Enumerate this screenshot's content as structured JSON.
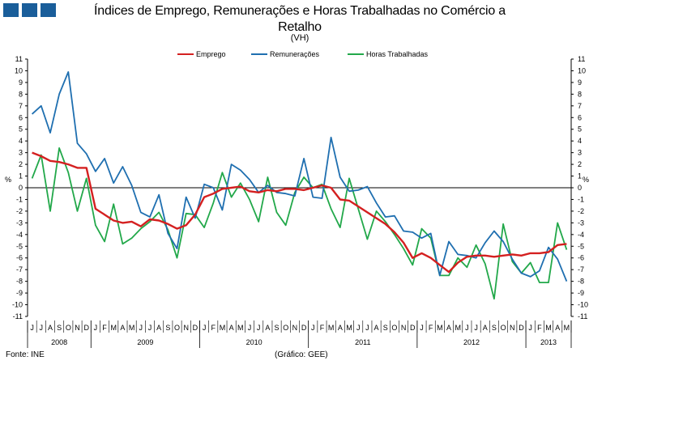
{
  "header": {
    "title_line1": "Índices de Emprego, Remunerações e Horas Trabalhadas no Comércio a",
    "title_line2": "Retalho",
    "subtitle": "(VH)"
  },
  "footer": {
    "source": "Fonte: INE",
    "note": "(Gráfico: GEE)"
  },
  "colors": {
    "logo": "#1a5e9a",
    "emprego": "#d42020",
    "remuneracoes": "#1f6fb0",
    "horas": "#22a84a"
  },
  "chart_data": {
    "type": "line",
    "y_unit_left": "%",
    "y_unit_right": "%",
    "ylim": [
      -11,
      11
    ],
    "yticks": [
      -11,
      -10,
      -9,
      -8,
      -7,
      -6,
      -5,
      -4,
      -3,
      -2,
      -1,
      0,
      1,
      2,
      3,
      4,
      5,
      6,
      7,
      8,
      9,
      10,
      11
    ],
    "grid": false,
    "legend_position": "top-center",
    "x": [
      "J",
      "J",
      "A",
      "S",
      "O",
      "N",
      "D",
      "J",
      "F",
      "M",
      "A",
      "M",
      "J",
      "J",
      "A",
      "S",
      "O",
      "N",
      "D",
      "J",
      "F",
      "M",
      "A",
      "M",
      "J",
      "J",
      "A",
      "S",
      "O",
      "N",
      "D",
      "J",
      "F",
      "M",
      "A",
      "M",
      "J",
      "J",
      "A",
      "S",
      "O",
      "N",
      "D",
      "J",
      "F",
      "M",
      "A",
      "M",
      "J",
      "J",
      "A",
      "S",
      "O",
      "N",
      "D",
      "J",
      "F",
      "M",
      "A",
      "M"
    ],
    "years": [
      {
        "label": "2008",
        "start": 0,
        "end": 6
      },
      {
        "label": "2009",
        "start": 7,
        "end": 18
      },
      {
        "label": "2010",
        "start": 19,
        "end": 30
      },
      {
        "label": "2011",
        "start": 31,
        "end": 42
      },
      {
        "label": "2012",
        "start": 43,
        "end": 54
      },
      {
        "label": "2013",
        "start": 55,
        "end": 59
      }
    ],
    "series": [
      {
        "name": "Emprego",
        "key": "emprego",
        "values": [
          3.0,
          2.7,
          2.3,
          2.2,
          2.0,
          1.7,
          1.7,
          -1.8,
          -2.3,
          -2.8,
          -3.0,
          -2.9,
          -3.3,
          -2.7,
          -2.8,
          -3.1,
          -3.5,
          -3.2,
          -2.3,
          -0.8,
          -0.5,
          -0.1,
          0.0,
          0.1,
          -0.3,
          -0.4,
          -0.2,
          -0.3,
          -0.1,
          -0.1,
          -0.2,
          0.0,
          0.2,
          0.0,
          -1.0,
          -1.1,
          -1.6,
          -2.1,
          -2.6,
          -3.1,
          -3.8,
          -4.7,
          -6.0,
          -5.6,
          -6.0,
          -6.6,
          -7.2,
          -6.4,
          -5.9,
          -5.8,
          -5.8,
          -5.9,
          -5.8,
          -5.7,
          -5.8,
          -5.6,
          -5.6,
          -5.5,
          -4.9,
          -4.8
        ]
      },
      {
        "name": "Remunerações",
        "key": "remuneracoes",
        "values": [
          6.3,
          7.0,
          4.7,
          8.0,
          9.9,
          3.8,
          2.9,
          1.4,
          2.5,
          0.4,
          1.8,
          0.2,
          -2.1,
          -2.5,
          -0.6,
          -3.9,
          -5.2,
          -0.8,
          -2.6,
          0.3,
          0.0,
          -1.9,
          2.0,
          1.5,
          0.7,
          -0.4,
          0.2,
          -0.4,
          -0.5,
          -0.7,
          2.5,
          -0.8,
          -0.9,
          4.3,
          0.9,
          -0.3,
          -0.2,
          0.1,
          -1.3,
          -2.5,
          -2.4,
          -3.7,
          -3.8,
          -4.3,
          -3.9,
          -7.5,
          -4.6,
          -5.7,
          -5.8,
          -6.0,
          -4.7,
          -3.7,
          -4.6,
          -6.1,
          -7.3,
          -7.6,
          -7.1,
          -5.1,
          -6.1,
          -8.0
        ]
      },
      {
        "name": "Horas Trabalhadas",
        "key": "horas",
        "values": [
          0.8,
          2.8,
          -2.0,
          3.4,
          1.3,
          -2.0,
          0.8,
          -3.2,
          -4.6,
          -1.4,
          -4.8,
          -4.3,
          -3.5,
          -2.9,
          -2.1,
          -3.6,
          -6.0,
          -2.2,
          -2.3,
          -3.4,
          -1.3,
          1.3,
          -0.8,
          0.4,
          -1.0,
          -2.9,
          0.9,
          -2.1,
          -3.2,
          -0.4,
          0.9,
          0.0,
          0.3,
          -1.8,
          -3.4,
          0.8,
          -1.8,
          -4.4,
          -2.0,
          -2.9,
          -4.0,
          -5.2,
          -6.6,
          -3.5,
          -4.3,
          -7.5,
          -7.5,
          -6.0,
          -6.8,
          -4.9,
          -6.5,
          -9.5,
          -3.1,
          -6.3,
          -7.3,
          -6.4,
          -8.1,
          -8.1,
          -3.0,
          -5.3
        ]
      }
    ]
  }
}
